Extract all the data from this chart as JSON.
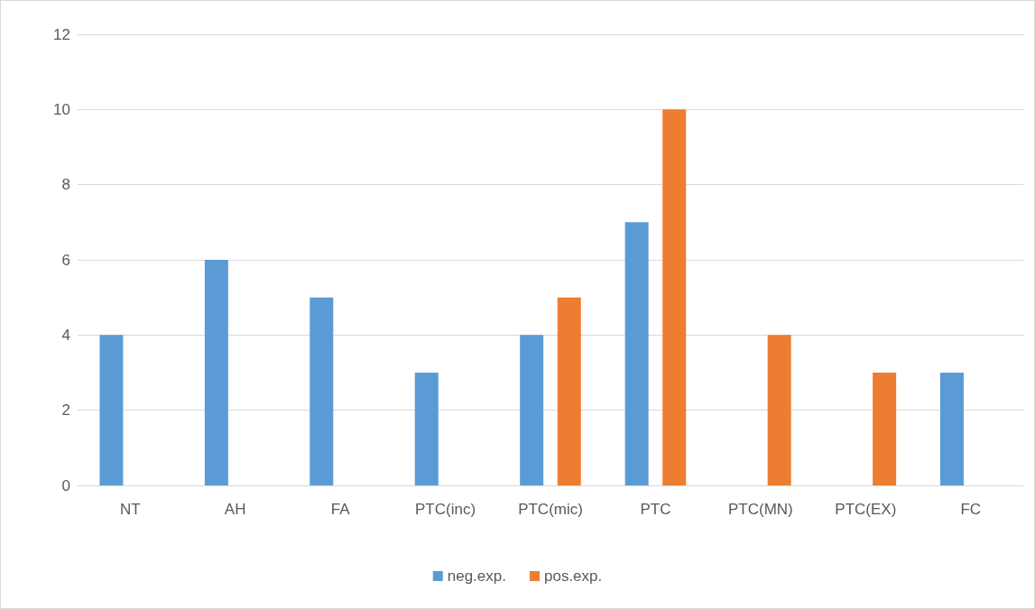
{
  "chart_data": {
    "type": "bar",
    "categories": [
      "NT",
      "AH",
      "FA",
      "PTC(inc)",
      "PTC(mic)",
      "PTC",
      "PTC(MN)",
      "PTC(EX)",
      "FC"
    ],
    "series": [
      {
        "name": "neg.exp.",
        "color": "#5b9bd5",
        "values": [
          4,
          6,
          5,
          3,
          4,
          7,
          null,
          null,
          3
        ]
      },
      {
        "name": "pos.exp.",
        "color": "#ed7d31",
        "values": [
          null,
          null,
          null,
          null,
          5,
          10,
          4,
          3,
          null
        ]
      }
    ],
    "ylim": [
      0,
      12
    ],
    "yticks": [
      0,
      2,
      4,
      6,
      8,
      10,
      12
    ],
    "grid": "y",
    "legend": "bottom"
  }
}
